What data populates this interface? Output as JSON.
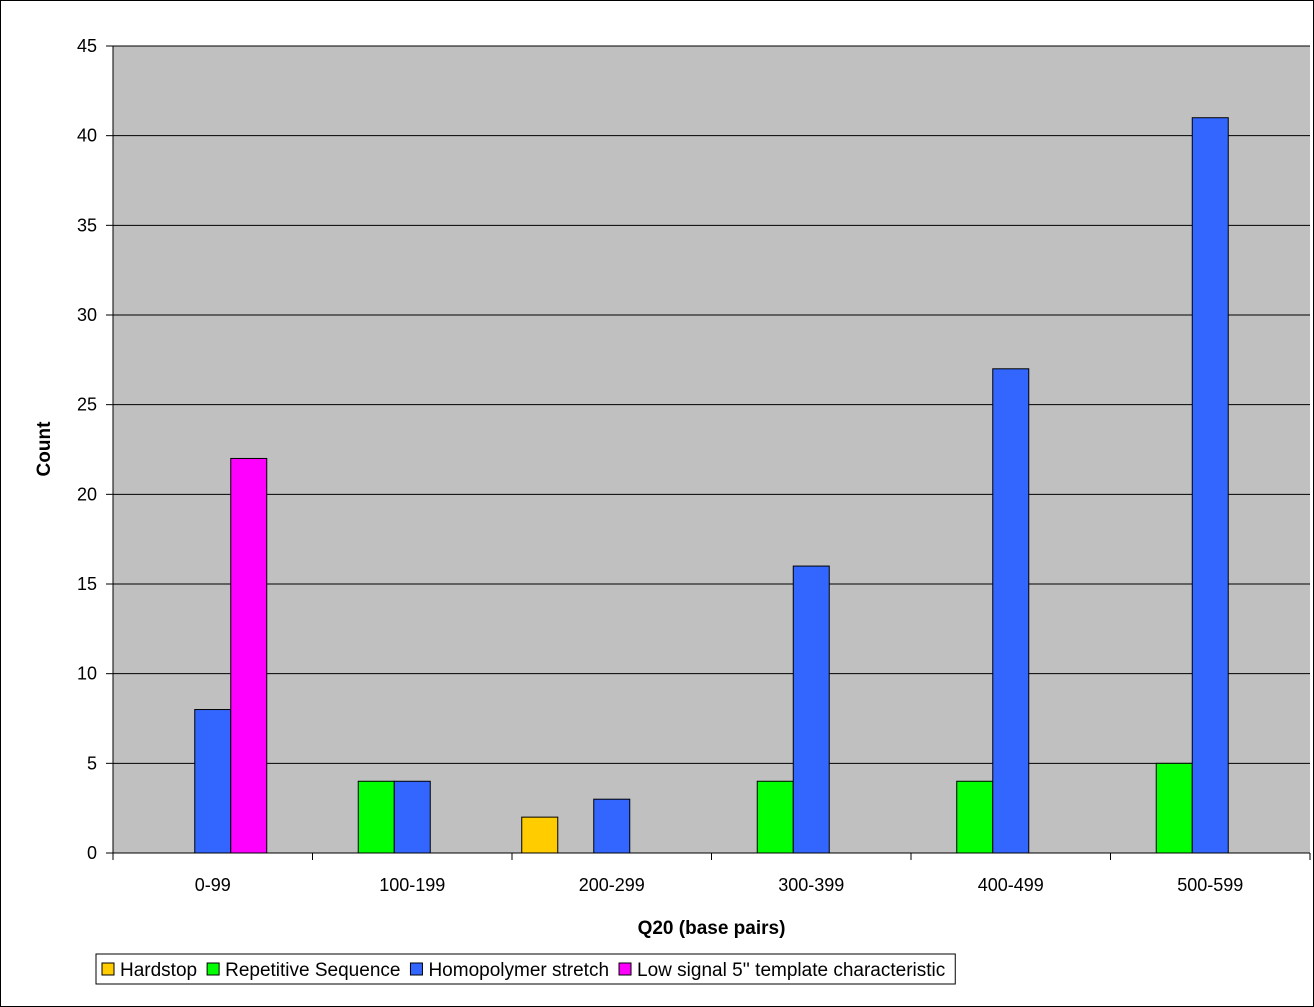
{
  "chart_data": {
    "type": "bar",
    "title": "",
    "xlabel": "Q20 (base pairs)",
    "ylabel": "Count",
    "categories": [
      "0-99",
      "100-199",
      "200-299",
      "300-399",
      "400-499",
      "500-599"
    ],
    "ylim": [
      0,
      45
    ],
    "yticks": [
      0,
      5,
      10,
      15,
      20,
      25,
      30,
      35,
      40,
      45
    ],
    "grid": true,
    "legend_position": "bottom",
    "plot_background": "#C0C0C0",
    "series": [
      {
        "name": "Hardstop",
        "color": "#FFCC00",
        "values": [
          0,
          0,
          2,
          0,
          0,
          0
        ]
      },
      {
        "name": "Repetitive Sequence",
        "color": "#00FF00",
        "values": [
          0,
          4,
          0,
          4,
          4,
          5
        ]
      },
      {
        "name": "Homopolymer stretch",
        "color": "#3366FF",
        "values": [
          8,
          4,
          3,
          16,
          27,
          41
        ]
      },
      {
        "name": "Low signal 5'' template characteristic",
        "color": "#FF00FF",
        "values": [
          22,
          0,
          0,
          0,
          0,
          0
        ]
      }
    ]
  }
}
